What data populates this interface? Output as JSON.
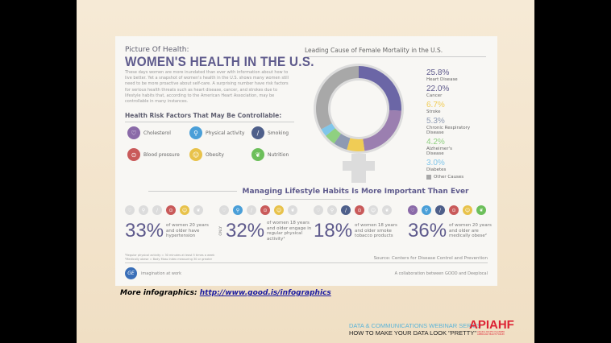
{
  "infographic": {
    "subtitle": "Picture Of Health:",
    "title": "WOMEN'S HEALTH IN THE U.S.",
    "intro": "These days women are more inundated than ever with information about how to live better. Yet a snapshot of women's health in the U.S. shows many women still need to be more proactive about self-care. A surprising number have risk factors for serious health threats such as heart disease, cancer, and strokes due to lifestyle habits that, according to the American Heart Association, may be controllable in many instances.",
    "risk_heading": "Health Risk Factors That May Be Controllable:",
    "risk_factors": [
      {
        "label": "Cholesterol",
        "icon": "heart-icon",
        "color": "#8a6aa8",
        "glyph": "♡"
      },
      {
        "label": "Physical activity",
        "icon": "bicycle-icon",
        "color": "#4a9fd8",
        "glyph": "⚲"
      },
      {
        "label": "Smoking",
        "icon": "cigarette-icon",
        "color": "#4e5f8a",
        "glyph": "/"
      },
      {
        "label": "Blood pressure",
        "icon": "gauge-icon",
        "color": "#c95a5a",
        "glyph": "⊙"
      },
      {
        "label": "Obesity",
        "icon": "face-icon",
        "color": "#e8c24a",
        "glyph": "☺"
      },
      {
        "label": "Nutrition",
        "icon": "apple-icon",
        "color": "#6cbf5a",
        "glyph": "❦"
      }
    ],
    "mortality_heading": "Leading Cause of Female Mortality in the U.S.",
    "chart_data": {
      "type": "pie",
      "title": "Leading Cause of Female Mortality in the U.S.",
      "slices": [
        {
          "label": "Heart Disease",
          "value": 25.8,
          "display": "25.8%",
          "color": "#6b66a6"
        },
        {
          "label": "Cancer",
          "value": 22.0,
          "display": "22.0%",
          "color": "#9b7fb0"
        },
        {
          "label": "Stroke",
          "value": 6.7,
          "display": "6.7%",
          "color": "#f0cc55"
        },
        {
          "label": "Chronic Respiratory Disease",
          "value": 5.3,
          "display": "5.3%",
          "color": "#8e9ab2"
        },
        {
          "label": "Alzheimer's Disease",
          "value": 4.2,
          "display": "4.2%",
          "color": "#8fd080"
        },
        {
          "label": "Diabetes",
          "value": 3.0,
          "display": "3.0%",
          "color": "#80c6ea"
        },
        {
          "label": "Other Causes",
          "value": 33.0,
          "color": "#a8a8a8"
        }
      ]
    },
    "lifestyle_heading": "Managing Lifestyle Habits Is More Important Than Ever",
    "stats": [
      {
        "value": "33%",
        "prefix": "",
        "text": "of women 20 years and older have hypertension",
        "active": [
          false,
          false,
          false,
          true,
          true,
          false
        ]
      },
      {
        "value": "32%",
        "prefix": "ONLY",
        "text": "of women 18 years and older engage in regular physical activity¹",
        "active": [
          false,
          true,
          false,
          true,
          true,
          false
        ]
      },
      {
        "value": "18%",
        "prefix": "",
        "text": "of women 18 years and older smoke tobacco products",
        "active": [
          false,
          false,
          true,
          true,
          false,
          false
        ]
      },
      {
        "value": "36%",
        "prefix": "",
        "text": "of women 20 years and older are medically obese²",
        "active": [
          true,
          true,
          true,
          true,
          true,
          true
        ]
      }
    ],
    "footnotes": [
      "¹Regular physical activity = 30 minutes at least 5 times a week",
      "²Medically obese = Body Mass Index measuring 30 or greater"
    ],
    "source": "Source: Centers for Disease Control and Prevention",
    "ge_logo": "GE",
    "tagline": "imagination at work",
    "collab": "A collaboration between GOOD and Deeplocal"
  },
  "slide": {
    "more_label": "More infographics:",
    "link": "http://www.good.is/infographics",
    "series": "DATA & COMMUNICATIONS WEBINAR SERIES",
    "talk": "HOW TO MAKE YOUR DATA LOOK \"PRETTY\"",
    "logo": "APIAHF",
    "logo_sub": "ASIAN & PACIFIC ISLANDER AMERICAN HEALTH FORUM"
  }
}
